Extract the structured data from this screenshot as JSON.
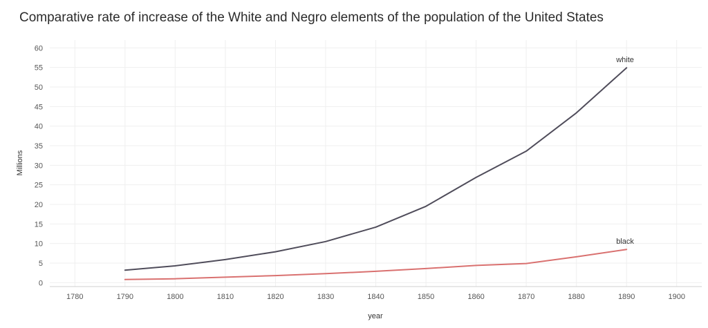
{
  "chart_data": {
    "type": "line",
    "title": "Comparative rate of increase of the White and Negro elements of the population of the United States",
    "xlabel": "year",
    "ylabel": "Millions",
    "xlim": [
      1775,
      1905
    ],
    "ylim": [
      -1,
      62
    ],
    "xticks": [
      1780,
      1790,
      1800,
      1810,
      1820,
      1830,
      1840,
      1850,
      1860,
      1870,
      1880,
      1890,
      1900
    ],
    "yticks": [
      0,
      5,
      10,
      15,
      20,
      25,
      30,
      35,
      40,
      45,
      50,
      55,
      60
    ],
    "grid": true,
    "x": [
      1790,
      1800,
      1810,
      1820,
      1830,
      1840,
      1850,
      1860,
      1870,
      1880,
      1890
    ],
    "series": [
      {
        "name": "white",
        "color": "#4f4c5a",
        "values": [
          3.2,
          4.3,
          5.9,
          7.9,
          10.5,
          14.2,
          19.5,
          26.9,
          33.6,
          43.4,
          54.9
        ]
      },
      {
        "name": "black",
        "color": "#d9706f",
        "values": [
          0.8,
          1.0,
          1.4,
          1.8,
          2.3,
          2.9,
          3.6,
          4.4,
          4.9,
          6.6,
          8.5
        ]
      }
    ]
  },
  "colors": {
    "grid": "#efefef",
    "axis": "#cfcfcf"
  }
}
